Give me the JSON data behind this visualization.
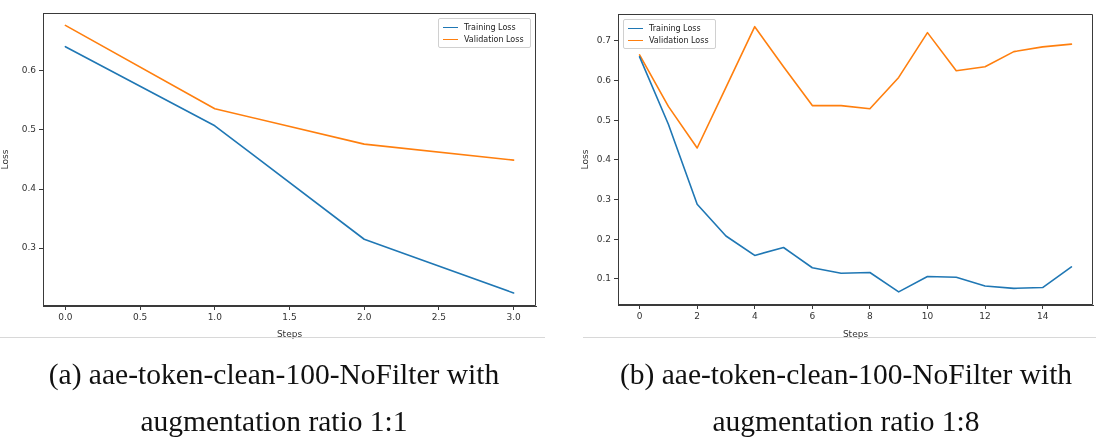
{
  "chart_data": [
    {
      "type": "line",
      "title": "(a) aae-token-clean-100-NoFilter with augmentation ratio 1:1",
      "xlabel": "Steps",
      "ylabel": "Loss",
      "x": [
        0,
        1,
        2,
        3
      ],
      "series": [
        {
          "name": "Training Loss",
          "color": "#1f77b4",
          "values": [
            0.641,
            0.507,
            0.315,
            0.224
          ]
        },
        {
          "name": "Validation Loss",
          "color": "#ff7f0e",
          "values": [
            0.677,
            0.536,
            0.476,
            0.449
          ]
        }
      ],
      "xlim": [
        -0.15,
        3.15
      ],
      "xticks": [
        {
          "value": 0,
          "label": "0.0"
        },
        0.5,
        {
          "value": 1,
          "label": "1.0"
        },
        1.5,
        {
          "value": 2,
          "label": "2.0"
        },
        2.5,
        {
          "value": 3,
          "label": "3.0"
        }
      ],
      "ylim": [
        0.202,
        0.698
      ],
      "yticks": [
        0.3,
        0.4,
        0.5,
        0.6
      ],
      "legend": "top right"
    },
    {
      "type": "line",
      "title": "(b) aae-token-clean-100-NoFilter with augmentation ratio 1:8",
      "xlabel": "Steps",
      "ylabel": "Loss",
      "x": [
        0,
        1,
        2,
        3,
        4,
        5,
        6,
        7,
        8,
        9,
        10,
        11,
        12,
        13,
        14,
        15
      ],
      "series": [
        {
          "name": "Training Loss",
          "color": "#1f77b4",
          "values": [
            0.66,
            0.49,
            0.288,
            0.208,
            0.159,
            0.179,
            0.128,
            0.114,
            0.116,
            0.067,
            0.106,
            0.104,
            0.082,
            0.076,
            0.078,
            0.13
          ]
        },
        {
          "name": "Validation Loss",
          "color": "#ff7f0e",
          "values": [
            0.665,
            0.535,
            0.43,
            0.583,
            0.736,
            0.635,
            0.537,
            0.537,
            0.529,
            0.608,
            0.721,
            0.625,
            0.635,
            0.673,
            0.685,
            0.692
          ]
        }
      ],
      "xlim": [
        -0.75,
        15.75
      ],
      "xticks": [
        0,
        2,
        4,
        6,
        8,
        10,
        12,
        14
      ],
      "ylim": [
        0.034,
        0.768
      ],
      "yticks": [
        0.1,
        0.2,
        0.3,
        0.4,
        0.5,
        0.6,
        0.7
      ],
      "legend": "top left"
    }
  ]
}
